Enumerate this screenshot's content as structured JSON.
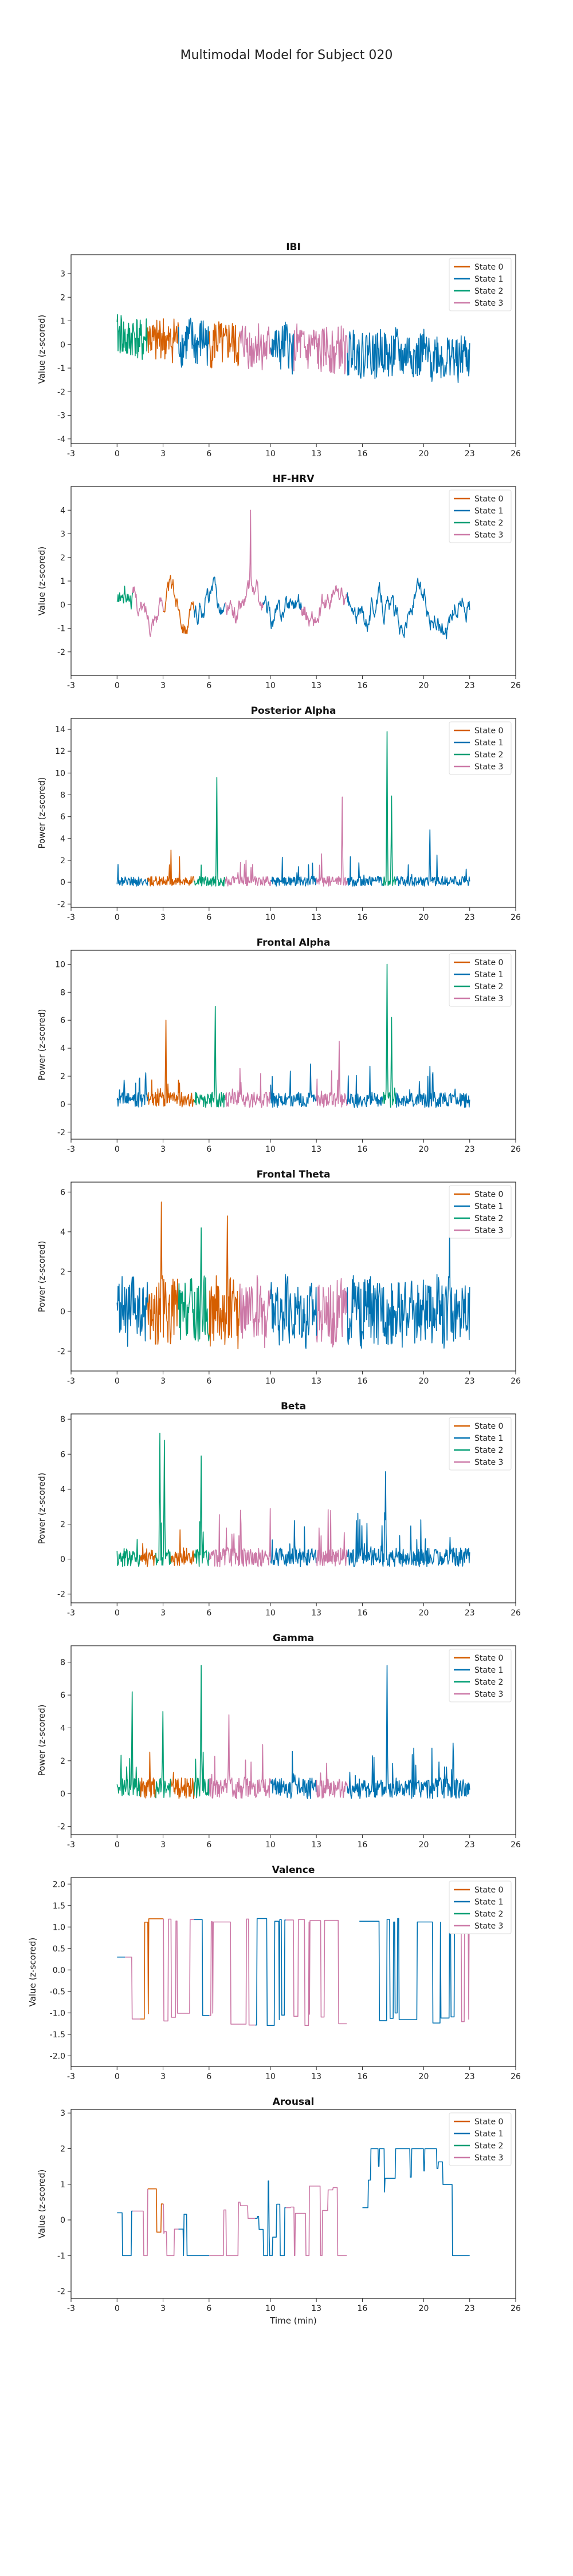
{
  "suptitle": "Multimodal Model for Subject 020",
  "state_labels": [
    "State 0",
    "State 1",
    "State 2",
    "State 3"
  ],
  "state_colors": [
    "#d55e00",
    "#0072b2",
    "#009e73",
    "#cc79a7"
  ],
  "x_axis_label": "Time (min)",
  "chart_data": [
    {
      "type": "line",
      "title": "IBI",
      "ylabel": "Value (z-scored)",
      "xlim": [
        -3,
        26
      ],
      "ylim": [
        -4.2,
        3.8
      ],
      "xticks": [
        -3,
        0,
        3,
        6,
        10,
        13,
        16,
        20,
        23,
        26
      ],
      "yticks": [
        -4,
        -3,
        -2,
        -1,
        0,
        1,
        2,
        3
      ],
      "kind": "noisy",
      "base": 0.3,
      "amp": 0.6,
      "trend": -0.9,
      "spikes": [],
      "legend": "top-right",
      "segments": [
        {
          "start": 0,
          "end": 2,
          "state": 2
        },
        {
          "start": 2,
          "end": 4,
          "state": 0
        },
        {
          "start": 4,
          "end": 6,
          "state": 1
        },
        {
          "start": 6,
          "end": 8,
          "state": 0
        },
        {
          "start": 8,
          "end": 10,
          "state": 3
        },
        {
          "start": 10,
          "end": 11.5,
          "state": 1
        },
        {
          "start": 11.5,
          "end": 15,
          "state": 3
        },
        {
          "start": 15,
          "end": 23,
          "state": 1
        }
      ]
    },
    {
      "type": "line",
      "title": "HF-HRV",
      "ylabel": "Value (z-scored)",
      "xlim": [
        -3,
        26
      ],
      "ylim": [
        -3,
        5
      ],
      "xticks": [
        -3,
        0,
        3,
        6,
        10,
        13,
        16,
        20,
        23,
        26
      ],
      "yticks": [
        -2,
        -1,
        0,
        1,
        2,
        3,
        4
      ],
      "kind": "smooth",
      "base": 0.0,
      "amp": 0.8,
      "trend": -0.3,
      "spikes": [
        [
          8.7,
          4.0
        ]
      ],
      "legend": "top-right",
      "segments": [
        {
          "start": 0,
          "end": 1,
          "state": 2
        },
        {
          "start": 1,
          "end": 3,
          "state": 3
        },
        {
          "start": 3,
          "end": 5,
          "state": 0
        },
        {
          "start": 5,
          "end": 7,
          "state": 1
        },
        {
          "start": 7,
          "end": 9.5,
          "state": 3
        },
        {
          "start": 9.5,
          "end": 12,
          "state": 1
        },
        {
          "start": 12,
          "end": 15,
          "state": 3
        },
        {
          "start": 15,
          "end": 23,
          "state": 1
        }
      ]
    },
    {
      "type": "line",
      "title": "Posterior Alpha",
      "ylabel": "Power (z-scored)",
      "xlim": [
        -3,
        26
      ],
      "ylim": [
        -2.3,
        15
      ],
      "xticks": [
        -3,
        0,
        3,
        6,
        10,
        13,
        16,
        20,
        23,
        26
      ],
      "yticks": [
        -2,
        0,
        2,
        4,
        6,
        8,
        10,
        12,
        14
      ],
      "kind": "spiky",
      "base": 0.0,
      "amp": 0.5,
      "trend": 0,
      "spikes": [
        [
          6.5,
          9.6
        ],
        [
          14.7,
          7.8
        ],
        [
          17.6,
          13.8
        ],
        [
          17.9,
          7.9
        ],
        [
          20.4,
          4.8
        ]
      ],
      "legend": "top-right",
      "segments": [
        {
          "start": 0,
          "end": 2,
          "state": 1
        },
        {
          "start": 2,
          "end": 5,
          "state": 0
        },
        {
          "start": 5,
          "end": 7,
          "state": 2
        },
        {
          "start": 7,
          "end": 10,
          "state": 3
        },
        {
          "start": 10,
          "end": 13,
          "state": 1
        },
        {
          "start": 13,
          "end": 15,
          "state": 3
        },
        {
          "start": 15,
          "end": 17.3,
          "state": 1
        },
        {
          "start": 17.3,
          "end": 18.2,
          "state": 2
        },
        {
          "start": 18.2,
          "end": 23,
          "state": 1
        }
      ]
    },
    {
      "type": "line",
      "title": "Frontal Alpha",
      "ylabel": "Power (z-scored)",
      "xlim": [
        -3,
        26
      ],
      "ylim": [
        -2.5,
        11
      ],
      "xticks": [
        -3,
        0,
        3,
        6,
        10,
        13,
        16,
        20,
        23,
        26
      ],
      "yticks": [
        -2,
        0,
        2,
        4,
        6,
        8,
        10
      ],
      "kind": "spiky",
      "base": 0.2,
      "amp": 0.6,
      "trend": 0,
      "spikes": [
        [
          3.2,
          6.0
        ],
        [
          6.4,
          7.0
        ],
        [
          14.5,
          4.5
        ],
        [
          17.6,
          10.0
        ],
        [
          17.9,
          6.2
        ]
      ],
      "legend": "top-right",
      "segments": [
        {
          "start": 0,
          "end": 2,
          "state": 1
        },
        {
          "start": 2,
          "end": 5,
          "state": 0
        },
        {
          "start": 5,
          "end": 7,
          "state": 2
        },
        {
          "start": 7,
          "end": 10,
          "state": 3
        },
        {
          "start": 10,
          "end": 13,
          "state": 1
        },
        {
          "start": 13,
          "end": 15,
          "state": 3
        },
        {
          "start": 15,
          "end": 17.3,
          "state": 1
        },
        {
          "start": 17.3,
          "end": 18.2,
          "state": 2
        },
        {
          "start": 18.2,
          "end": 23,
          "state": 1
        }
      ]
    },
    {
      "type": "line",
      "title": "Frontal Theta",
      "ylabel": "Power (z-scored)",
      "xlim": [
        -3,
        26
      ],
      "ylim": [
        -3,
        6.5
      ],
      "xticks": [
        -3,
        0,
        3,
        6,
        10,
        13,
        16,
        20,
        23,
        26
      ],
      "yticks": [
        -2,
        0,
        2,
        4,
        6
      ],
      "kind": "noisy",
      "base": 0.0,
      "amp": 1.0,
      "trend": 0,
      "spikes": [
        [
          2.9,
          5.5
        ],
        [
          5.5,
          4.2
        ],
        [
          7.2,
          4.8
        ],
        [
          21.7,
          3.8
        ]
      ],
      "legend": "top-right",
      "segments": [
        {
          "start": 0,
          "end": 2,
          "state": 1
        },
        {
          "start": 2,
          "end": 4,
          "state": 0
        },
        {
          "start": 4,
          "end": 6,
          "state": 2
        },
        {
          "start": 6,
          "end": 8,
          "state": 0
        },
        {
          "start": 8,
          "end": 10,
          "state": 3
        },
        {
          "start": 10,
          "end": 13,
          "state": 1
        },
        {
          "start": 13,
          "end": 15,
          "state": 3
        },
        {
          "start": 15,
          "end": 23,
          "state": 1
        }
      ]
    },
    {
      "type": "line",
      "title": "Beta",
      "ylabel": "Power (z-scored)",
      "xlim": [
        -3,
        26
      ],
      "ylim": [
        -2.5,
        8.3
      ],
      "xticks": [
        -3,
        0,
        3,
        6,
        10,
        13,
        16,
        20,
        23,
        26
      ],
      "yticks": [
        -2,
        0,
        2,
        4,
        6,
        8
      ],
      "kind": "spiky",
      "base": 0.0,
      "amp": 0.6,
      "trend": 0,
      "spikes": [
        [
          2.8,
          7.2
        ],
        [
          3.1,
          6.8
        ],
        [
          5.5,
          5.9
        ],
        [
          17.5,
          5.0
        ]
      ],
      "legend": "top-right",
      "segments": [
        {
          "start": 0,
          "end": 1.5,
          "state": 2
        },
        {
          "start": 1.5,
          "end": 2.5,
          "state": 0
        },
        {
          "start": 2.5,
          "end": 3.5,
          "state": 2
        },
        {
          "start": 3.5,
          "end": 5,
          "state": 0
        },
        {
          "start": 5,
          "end": 6,
          "state": 2
        },
        {
          "start": 6,
          "end": 10,
          "state": 3
        },
        {
          "start": 10,
          "end": 13,
          "state": 1
        },
        {
          "start": 13,
          "end": 15,
          "state": 3
        },
        {
          "start": 15,
          "end": 23,
          "state": 1
        }
      ]
    },
    {
      "type": "line",
      "title": "Gamma",
      "ylabel": "Power (z-scored)",
      "xlim": [
        -3,
        26
      ],
      "ylim": [
        -2.5,
        9
      ],
      "xticks": [
        -3,
        0,
        3,
        6,
        10,
        13,
        16,
        20,
        23,
        26
      ],
      "yticks": [
        -2,
        0,
        2,
        4,
        6,
        8
      ],
      "kind": "spiky",
      "base": 0.2,
      "amp": 0.7,
      "trend": 0,
      "spikes": [
        [
          1.0,
          6.2
        ],
        [
          3.0,
          5.0
        ],
        [
          5.5,
          7.8
        ],
        [
          7.3,
          4.8
        ],
        [
          17.6,
          7.8
        ]
      ],
      "legend": "top-right",
      "segments": [
        {
          "start": 0,
          "end": 1.5,
          "state": 2
        },
        {
          "start": 1.5,
          "end": 2.5,
          "state": 0
        },
        {
          "start": 2.5,
          "end": 3.5,
          "state": 2
        },
        {
          "start": 3.5,
          "end": 5,
          "state": 0
        },
        {
          "start": 5,
          "end": 6,
          "state": 2
        },
        {
          "start": 6,
          "end": 10,
          "state": 3
        },
        {
          "start": 10,
          "end": 13,
          "state": 1
        },
        {
          "start": 13,
          "end": 15,
          "state": 3
        },
        {
          "start": 15,
          "end": 23,
          "state": 1
        }
      ]
    },
    {
      "type": "line",
      "title": "Valence",
      "ylabel": "Value (z-scored)",
      "xlim": [
        -3,
        26
      ],
      "ylim": [
        -2.25,
        2.15
      ],
      "xticks": [
        -3,
        0,
        3,
        6,
        10,
        13,
        16,
        20,
        23,
        26
      ],
      "yticks": [
        -2.0,
        -1.5,
        -1.0,
        -0.5,
        0.0,
        0.5,
        1.0,
        1.5,
        2.0
      ],
      "kind": "step",
      "levels": [
        1.2,
        -1.3
      ],
      "base": 0,
      "amp": 0,
      "trend": 0,
      "spikes": [],
      "legend": "top-right",
      "segments": [
        {
          "start": 0,
          "end": 0.5,
          "state": 1
        },
        {
          "start": 0.5,
          "end": 1.5,
          "state": 3
        },
        {
          "start": 1.5,
          "end": 3,
          "state": 0
        },
        {
          "start": 3,
          "end": 5,
          "state": 3
        },
        {
          "start": 5,
          "end": 6,
          "state": 1
        },
        {
          "start": 6,
          "end": 9,
          "state": 3
        },
        {
          "start": 9,
          "end": 11,
          "state": 1
        },
        {
          "start": 11,
          "end": 15,
          "state": 3
        },
        {
          "start": 15.8,
          "end": 22,
          "state": 1
        },
        {
          "start": 22,
          "end": 23,
          "state": 3
        }
      ]
    },
    {
      "type": "line",
      "title": "Arousal",
      "ylabel": "Value (z-scored)",
      "xlim": [
        -3,
        26
      ],
      "ylim": [
        -2.2,
        3.1
      ],
      "xticks": [
        -3,
        0,
        3,
        6,
        10,
        13,
        16,
        20,
        23,
        26
      ],
      "yticks": [
        -2,
        -1,
        0,
        1,
        2,
        3
      ],
      "kind": "arousal",
      "levels": [
        -1.0,
        2.0
      ],
      "base": 0,
      "amp": 0,
      "trend": 0,
      "spikes": [],
      "legend": "top-right",
      "segments": [
        {
          "start": 0,
          "end": 1,
          "state": 1
        },
        {
          "start": 1,
          "end": 2,
          "state": 3
        },
        {
          "start": 2,
          "end": 3,
          "state": 0
        },
        {
          "start": 3,
          "end": 4,
          "state": 3
        },
        {
          "start": 4,
          "end": 6,
          "state": 1
        },
        {
          "start": 6,
          "end": 9,
          "state": 3
        },
        {
          "start": 9,
          "end": 11,
          "state": 1
        },
        {
          "start": 11,
          "end": 15,
          "state": 3
        },
        {
          "start": 16,
          "end": 23,
          "state": 1
        }
      ]
    }
  ]
}
